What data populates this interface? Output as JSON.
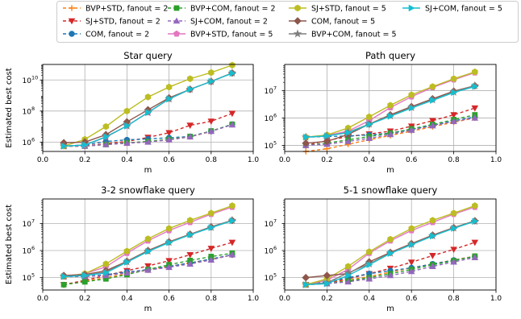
{
  "chart_data": {
    "type": "line",
    "legend": {
      "placement": "top",
      "columns": 4
    },
    "series_styles": [
      {
        "name": "BVP+STD, fanout = 2",
        "color": "#ff7f0e",
        "marker": "plus",
        "dash": "4,3"
      },
      {
        "name": "SJ+STD, fanout = 2",
        "color": "#d62728",
        "marker": "triangle-down",
        "dash": "4,3"
      },
      {
        "name": "COM, fanout = 2",
        "color": "#1f77b4",
        "marker": "circle",
        "dash": "4,3"
      },
      {
        "name": "BVP+COM, fanout = 2",
        "color": "#2ca02c",
        "marker": "square",
        "dash": "4,3"
      },
      {
        "name": "SJ+COM, fanout = 2",
        "color": "#9467bd",
        "marker": "triangle-up",
        "dash": "4,3"
      },
      {
        "name": "BVP+STD, fanout = 5",
        "color": "#e377c2",
        "marker": "pentagon",
        "dash": ""
      },
      {
        "name": "SJ+STD, fanout = 5",
        "color": "#bcbd22",
        "marker": "hexagon",
        "dash": ""
      },
      {
        "name": "COM, fanout = 5",
        "color": "#8c564b",
        "marker": "diamond",
        "dash": ""
      },
      {
        "name": "BVP+COM, fanout = 5",
        "color": "#7f7f7f",
        "marker": "star",
        "dash": ""
      },
      {
        "name": "SJ+COM, fanout = 5",
        "color": "#17becf",
        "marker": "triangle-right",
        "dash": ""
      }
    ],
    "x": [
      0.1,
      0.2,
      0.3,
      0.4,
      0.5,
      0.6,
      0.7,
      0.8,
      0.9
    ],
    "panels": [
      {
        "title": "Star query",
        "xlabel": "m",
        "ylabel": "Estimated best cost",
        "xlim": [
          0.0,
          1.0
        ],
        "ylim": [
          250000,
          100000000000
        ],
        "yscale": "log",
        "yticks": [
          {
            "value": 1000000,
            "label": "10",
            "exp": "6"
          },
          {
            "value": 100000000,
            "label": "10",
            "exp": "8"
          },
          {
            "value": 10000000000,
            "label": "10",
            "exp": "10"
          }
        ],
        "xticks": [
          "0.0",
          "0.2",
          "0.4",
          "0.6",
          "0.8",
          "1.0"
        ],
        "grid": true,
        "series": [
          [
            550000,
            550000,
            700000,
            850000,
            1100000,
            1400000,
            2200000,
            4800000,
            14000000
          ],
          [
            550000,
            550000,
            800000,
            1100000,
            2000000,
            4000000,
            12000000,
            22000000,
            70000000
          ],
          [
            550000,
            650000,
            1100000,
            1400000,
            1600000,
            1900000,
            2300000,
            5000000,
            14000000
          ],
          [
            550000,
            550000,
            700000,
            900000,
            1100000,
            1500000,
            2300000,
            5200000,
            14000000
          ],
          [
            550000,
            550000,
            700000,
            850000,
            1000000,
            1400000,
            2200000,
            5000000,
            13000000
          ],
          [
            550000,
            650000,
            2200000,
            11000000,
            80000000,
            600000000,
            2500000000,
            8000000000,
            28000000000
          ],
          [
            550000,
            1500000,
            10000000,
            100000000,
            800000000,
            3500000000,
            12000000000,
            30000000000,
            90000000000
          ],
          [
            900000,
            1000000,
            3000000,
            20000000,
            120000000,
            700000000,
            2500000000,
            8000000000,
            28000000000
          ],
          [
            550000,
            650000,
            2100000,
            11000000,
            80000000,
            600000000,
            2500000000,
            8000000000,
            28000000000
          ],
          [
            550000,
            650000,
            2200000,
            11000000,
            80000000,
            600000000,
            2500000000,
            8000000000,
            27000000000
          ]
        ]
      },
      {
        "title": "Path query",
        "xlabel": "m",
        "ylabel": "",
        "xlim": [
          0.0,
          1.0
        ],
        "ylim": [
          60000,
          90000000
        ],
        "yscale": "log",
        "yticks": [
          {
            "value": 100000,
            "label": "10",
            "exp": "5"
          },
          {
            "value": 1000000,
            "label": "10",
            "exp": "6"
          },
          {
            "value": 10000000,
            "label": "10",
            "exp": "7"
          }
        ],
        "xticks": [
          "0.0",
          "0.2",
          "0.4",
          "0.6",
          "0.8",
          "1.0"
        ],
        "grid": true,
        "series": [
          [
            60000,
            75000,
            110000,
            160000,
            230000,
            330000,
            480000,
            700000,
            1000000
          ],
          [
            100000,
            150000,
            210000,
            260000,
            330000,
            500000,
            800000,
            1300000,
            2300000
          ],
          [
            200000,
            210000,
            220000,
            240000,
            280000,
            380000,
            540000,
            780000,
            1100000
          ],
          [
            100000,
            120000,
            160000,
            210000,
            280000,
            400000,
            580000,
            870000,
            1300000
          ],
          [
            100000,
            110000,
            140000,
            180000,
            250000,
            360000,
            520000,
            750000,
            1000000
          ],
          [
            200000,
            230000,
            330000,
            800000,
            2400000,
            6000000,
            13000000,
            25000000,
            45000000
          ],
          [
            200000,
            240000,
            430000,
            1100000,
            2900000,
            7000000,
            14000000,
            27000000,
            48000000
          ],
          [
            120000,
            140000,
            250000,
            600000,
            1300000,
            2600000,
            5000000,
            9500000,
            15000000
          ],
          [
            200000,
            220000,
            300000,
            600000,
            1200000,
            2400000,
            4600000,
            8800000,
            15000000
          ],
          [
            200000,
            220000,
            290000,
            580000,
            1150000,
            2300000,
            4400000,
            8500000,
            14000000
          ]
        ]
      },
      {
        "title": "3-2 snowflake query",
        "xlabel": "m",
        "ylabel": "Estimated best cost",
        "xlim": [
          0.0,
          1.0
        ],
        "ylim": [
          35000,
          80000000
        ],
        "yscale": "log",
        "yticks": [
          {
            "value": 100000,
            "label": "10",
            "exp": "5"
          },
          {
            "value": 1000000,
            "label": "10",
            "exp": "6"
          },
          {
            "value": 10000000,
            "label": "10",
            "exp": "7"
          }
        ],
        "xticks": [
          "0.0",
          "0.2",
          "0.4",
          "0.6",
          "0.8",
          "1.0"
        ],
        "grid": true,
        "series": [
          [
            55000,
            75000,
            100000,
            140000,
            190000,
            260000,
            350000,
            480000,
            680000
          ],
          [
            55000,
            80000,
            120000,
            180000,
            270000,
            420000,
            700000,
            1200000,
            2000000
          ],
          [
            110000,
            110000,
            130000,
            160000,
            200000,
            260000,
            350000,
            490000,
            700000
          ],
          [
            55000,
            70000,
            90000,
            130000,
            200000,
            300000,
            430000,
            600000,
            800000
          ],
          [
            110000,
            110000,
            120000,
            150000,
            190000,
            240000,
            320000,
            450000,
            700000
          ],
          [
            110000,
            140000,
            250000,
            800000,
            2300000,
            5500000,
            11000000,
            22000000,
            40000000
          ],
          [
            110000,
            140000,
            320000,
            950000,
            2700000,
            6500000,
            13000000,
            24000000,
            45000000
          ],
          [
            120000,
            130000,
            180000,
            400000,
            1000000,
            2100000,
            4000000,
            7500000,
            13000000
          ],
          [
            110000,
            120000,
            160000,
            380000,
            950000,
            2000000,
            3900000,
            7200000,
            13000000
          ],
          [
            110000,
            120000,
            150000,
            370000,
            920000,
            1950000,
            3800000,
            7000000,
            12500000
          ]
        ]
      },
      {
        "title": "5-1 snowflake query",
        "xlabel": "m",
        "ylabel": "",
        "xlim": [
          0.0,
          1.0
        ],
        "ylim": [
          35000,
          80000000
        ],
        "yscale": "log",
        "yticks": [
          {
            "value": 100000,
            "label": "10",
            "exp": "5"
          },
          {
            "value": 1000000,
            "label": "10",
            "exp": "6"
          },
          {
            "value": 10000000,
            "label": "10",
            "exp": "7"
          }
        ],
        "xticks": [
          "0.0",
          "0.2",
          "0.4",
          "0.6",
          "0.8",
          "1.0"
        ],
        "grid": true,
        "series": [
          [
            55000,
            65000,
            80000,
            110000,
            160000,
            230000,
            320000,
            450000,
            620000
          ],
          [
            55000,
            65000,
            90000,
            140000,
            220000,
            370000,
            650000,
            1100000,
            2000000
          ],
          [
            55000,
            70000,
            100000,
            140000,
            180000,
            230000,
            320000,
            440000,
            600000
          ],
          [
            55000,
            60000,
            75000,
            100000,
            140000,
            200000,
            300000,
            420000,
            620000
          ],
          [
            55000,
            60000,
            70000,
            90000,
            120000,
            170000,
            260000,
            380000,
            550000
          ],
          [
            55000,
            80000,
            200000,
            800000,
            2300000,
            5500000,
            11000000,
            22000000,
            40000000
          ],
          [
            55000,
            90000,
            260000,
            900000,
            2600000,
            6500000,
            13000000,
            24000000,
            45000000
          ],
          [
            100000,
            120000,
            140000,
            380000,
            850000,
            1800000,
            3700000,
            7000000,
            12500000
          ],
          [
            55000,
            65000,
            150000,
            320000,
            800000,
            1700000,
            3500000,
            6800000,
            12000000
          ],
          [
            55000,
            60000,
            120000,
            300000,
            780000,
            1650000,
            3400000,
            6600000,
            12000000
          ]
        ]
      }
    ]
  }
}
